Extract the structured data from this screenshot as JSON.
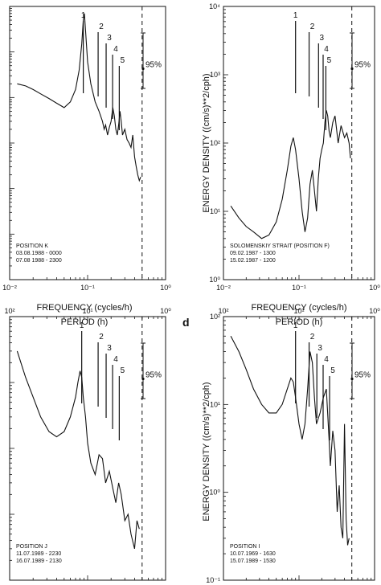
{
  "chart_data": [
    {
      "type": "line",
      "panel": "top-left",
      "xaxis": {
        "scale": "log",
        "range": [
          0.01,
          1
        ],
        "ticks": [
          "10⁻²",
          "10⁻¹",
          "10⁰"
        ],
        "label": "FREQUENCY (cycles/h)"
      },
      "yaxis": {
        "scale": "log",
        "range": [
          0.01,
          10000
        ],
        "ticks_right_panel_only": true
      },
      "series": [
        {
          "x": [
            0.0125,
            0.016,
            0.02,
            0.025,
            0.032,
            0.04,
            0.05,
            0.06,
            0.07,
            0.078,
            0.084,
            0.088,
            0.091,
            0.094,
            0.1,
            0.11,
            0.125,
            0.14,
            0.155,
            0.163,
            0.17,
            0.18,
            0.19,
            0.2,
            0.21,
            0.22,
            0.23,
            0.24,
            0.25,
            0.26,
            0.27,
            0.28,
            0.3,
            0.32,
            0.34,
            0.36,
            0.38,
            0.4,
            0.42,
            0.44,
            0.46,
            0.48
          ],
          "y": [
            200,
            180,
            150,
            120,
            95,
            75,
            60,
            80,
            150,
            400,
            1500,
            5000,
            7000,
            3000,
            600,
            200,
            80,
            50,
            30,
            20,
            25,
            15,
            22,
            30,
            60,
            40,
            20,
            15,
            25,
            50,
            30,
            15,
            20,
            12,
            10,
            8,
            15,
            5,
            3,
            2,
            1.5,
            1.8
          ]
        }
      ],
      "markers": [
        {
          "label": "1",
          "x": 0.088
        },
        {
          "label": "2",
          "x": 0.15
        },
        {
          "label": "3",
          "x": 0.19
        },
        {
          "label": "4",
          "x": 0.23
        },
        {
          "label": "5",
          "x": 0.28
        }
      ],
      "confidence": {
        "label": "95%",
        "x": 0.6
      },
      "cutoff_x": 0.5,
      "info": [
        "POSITION K",
        "03.08.1988 - 0000",
        "07.08 1988 - 2300"
      ]
    },
    {
      "type": "line",
      "panel": "top-right",
      "xaxis": {
        "scale": "log",
        "range": [
          0.01,
          1
        ],
        "ticks": [
          "10⁻²",
          "10⁻¹",
          "10⁰"
        ],
        "label": "FREQUENCY (cycles/h)"
      },
      "yaxis": {
        "scale": "log",
        "range": [
          1,
          10000
        ],
        "ticks": [
          "10⁰",
          "10¹",
          "10²",
          "10³",
          "10⁴"
        ],
        "label": "ENERGY DENSITY ((cm/s)**2/cph)"
      },
      "series": [
        {
          "x": [
            0.0125,
            0.016,
            0.02,
            0.025,
            0.032,
            0.04,
            0.05,
            0.06,
            0.07,
            0.078,
            0.084,
            0.09,
            0.1,
            0.11,
            0.12,
            0.13,
            0.14,
            0.15,
            0.16,
            0.17,
            0.18,
            0.19,
            0.2,
            0.21,
            0.22,
            0.23,
            0.24,
            0.25,
            0.26,
            0.28,
            0.3,
            0.33,
            0.36,
            0.4,
            0.43,
            0.46,
            0.48
          ],
          "y": [
            12,
            8,
            6,
            5,
            4,
            4.5,
            7,
            15,
            40,
            90,
            120,
            80,
            30,
            10,
            5,
            8,
            25,
            40,
            20,
            10,
            30,
            60,
            80,
            100,
            200,
            300,
            250,
            150,
            120,
            200,
            250,
            100,
            180,
            120,
            140,
            100,
            60
          ]
        }
      ],
      "markers": [
        {
          "label": "1",
          "x": 0.09
        },
        {
          "label": "2",
          "x": 0.15
        },
        {
          "label": "3",
          "x": 0.2
        },
        {
          "label": "4",
          "x": 0.23
        },
        {
          "label": "5",
          "x": 0.25
        }
      ],
      "confidence": {
        "label": "95%",
        "x": 0.6
      },
      "cutoff_x": 0.5,
      "info": [
        "SOLOMENSKIY STRAIT (POSITION F)",
        "09.02.1987 - 1300",
        "15.02.1987 - 1200"
      ]
    },
    {
      "type": "line",
      "panel": "bottom-left",
      "xaxis": {
        "scale": "log",
        "range_period": [
          100,
          1
        ],
        "ticks": [
          "10²",
          "10¹",
          "10⁰"
        ],
        "label": "PERIOD (h)"
      },
      "yaxis": {
        "scale": "log",
        "range": [
          0.01,
          100
        ]
      },
      "series": [
        {
          "x": [
            0.0125,
            0.016,
            0.02,
            0.025,
            0.032,
            0.04,
            0.05,
            0.06,
            0.07,
            0.075,
            0.08,
            0.084,
            0.088,
            0.094,
            0.1,
            0.11,
            0.125,
            0.14,
            0.155,
            0.17,
            0.19,
            0.21,
            0.23,
            0.25,
            0.27,
            0.3,
            0.33,
            0.36,
            0.4,
            0.43,
            0.46
          ],
          "y": [
            30,
            12,
            6,
            3,
            1.8,
            1.5,
            1.8,
            3,
            6,
            10,
            15,
            12,
            6,
            3,
            1.2,
            0.6,
            0.4,
            0.8,
            0.7,
            0.3,
            0.45,
            0.25,
            0.15,
            0.3,
            0.2,
            0.08,
            0.1,
            0.05,
            0.03,
            0.08,
            0.06
          ]
        }
      ],
      "markers": [
        {
          "label": "1",
          "x": 0.084
        },
        {
          "label": "2",
          "x": 0.15
        },
        {
          "label": "3",
          "x": 0.19
        },
        {
          "label": "4",
          "x": 0.23
        },
        {
          "label": "5",
          "x": 0.28
        }
      ],
      "confidence": {
        "label": "95%",
        "x": 0.6
      },
      "cutoff_x": 0.5,
      "info": [
        "POSITION J",
        "11.07.1989 - 2230",
        "16.07.1989 - 2130"
      ]
    },
    {
      "type": "line",
      "panel": "bottom-right",
      "xaxis": {
        "scale": "log",
        "range_period": [
          100,
          1
        ],
        "ticks": [
          "10²",
          "10¹",
          "10⁰"
        ],
        "label": "PERIOD (h)"
      },
      "yaxis": {
        "scale": "log",
        "range": [
          0.1,
          100
        ],
        "ticks": [
          "10⁻¹",
          "10⁰",
          "10¹",
          "10²"
        ],
        "label": "ENERGY DENSITY ((cm/s)**2/cph)"
      },
      "series": [
        {
          "x": [
            0.0125,
            0.016,
            0.02,
            0.025,
            0.032,
            0.04,
            0.05,
            0.06,
            0.07,
            0.078,
            0.084,
            0.09,
            0.1,
            0.11,
            0.12,
            0.13,
            0.14,
            0.15,
            0.16,
            0.17,
            0.19,
            0.21,
            0.23,
            0.25,
            0.26,
            0.28,
            0.3,
            0.32,
            0.34,
            0.36,
            0.38,
            0.4,
            0.42,
            0.44,
            0.46
          ],
          "y": [
            60,
            40,
            25,
            15,
            10,
            8,
            8,
            10,
            15,
            20,
            18,
            12,
            6,
            4,
            6,
            15,
            40,
            30,
            12,
            6,
            8,
            12,
            15,
            4,
            2,
            5,
            3,
            0.6,
            1.2,
            0.4,
            0.3,
            6,
            0.5,
            0.25,
            0.3
          ]
        }
      ],
      "markers": [
        {
          "label": "1",
          "x": 0.09
        },
        {
          "label": "2",
          "x": 0.15
        },
        {
          "label": "3",
          "x": 0.19
        },
        {
          "label": "4",
          "x": 0.23
        },
        {
          "label": "5",
          "x": 0.28
        }
      ],
      "confidence": {
        "label": "95%",
        "x": 0.6
      },
      "cutoff_x": 0.5,
      "info": [
        "POSITION I",
        "10.07.1969 - 1630",
        "15.07.1989 - 1530"
      ]
    }
  ],
  "labels": {
    "freq_title": "FREQUENCY (cycles/h)",
    "period_title": "PERIOD (h)",
    "energy_title": "ENERGY DENSITY ((cm/s)**2/cph)",
    "panel_letter_d": "d",
    "conf": "95%"
  }
}
